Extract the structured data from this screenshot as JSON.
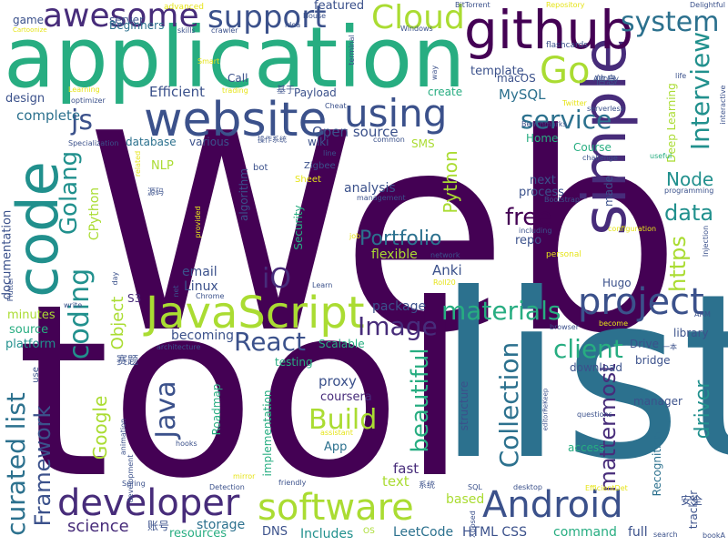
{
  "palette": {
    "p1": "#440154",
    "p2": "#472c7a",
    "p3": "#3b518b",
    "p4": "#2c718e",
    "p5": "#21908d",
    "p6": "#27ad81",
    "p7": "#5cc863",
    "p8": "#aadc32",
    "p9": "#e6e419"
  },
  "words": [
    {
      "text": "Web",
      "color": "p1"
    },
    {
      "text": "tool",
      "color": "p1"
    },
    {
      "text": "list",
      "color": "p4"
    },
    {
      "text": "application",
      "color": "p6"
    },
    {
      "text": "simple",
      "color": "p2"
    },
    {
      "text": "code",
      "color": "p5"
    },
    {
      "text": "github",
      "color": "p1"
    },
    {
      "text": "website",
      "color": "p3"
    },
    {
      "text": "using",
      "color": "p3"
    },
    {
      "text": "support",
      "color": "p3"
    },
    {
      "text": "awesome",
      "color": "p2"
    },
    {
      "text": "Cloud",
      "color": "p8"
    },
    {
      "text": "system",
      "color": "p4"
    },
    {
      "text": "Go",
      "color": "p8"
    },
    {
      "text": "service",
      "color": "p4"
    },
    {
      "text": "JavaScript",
      "color": "p8"
    },
    {
      "text": "project",
      "color": "p3"
    },
    {
      "text": "developer",
      "color": "p2"
    },
    {
      "text": "software",
      "color": "p8"
    },
    {
      "text": "Android",
      "color": "p3"
    },
    {
      "text": "curated list",
      "color": "p4"
    },
    {
      "text": "Framework",
      "color": "p3"
    },
    {
      "text": "Interview",
      "color": "p5"
    },
    {
      "text": "js",
      "color": "p3"
    },
    {
      "text": "Golang",
      "color": "p5"
    },
    {
      "text": "coding",
      "color": "p5"
    },
    {
      "text": "Java",
      "color": "p3"
    },
    {
      "text": "iO",
      "color": "p2"
    },
    {
      "text": "React",
      "color": "p3"
    },
    {
      "text": "Image",
      "color": "p2"
    },
    {
      "text": "materials",
      "color": "p6"
    },
    {
      "text": "client",
      "color": "p6"
    },
    {
      "text": "Build",
      "color": "p8"
    },
    {
      "text": "Collection",
      "color": "p4"
    },
    {
      "text": "beautiful",
      "color": "p6"
    },
    {
      "text": "mattermost",
      "color": "p2"
    },
    {
      "text": "Portfolio",
      "color": "p4"
    },
    {
      "text": "free",
      "color": "p1"
    },
    {
      "text": "data",
      "color": "p5"
    },
    {
      "text": "Node",
      "color": "p5"
    },
    {
      "text": "https",
      "color": "p8"
    },
    {
      "text": "driver",
      "color": "p5"
    },
    {
      "text": "Python",
      "color": "p8"
    },
    {
      "text": "Google",
      "color": "p8"
    },
    {
      "text": "Object",
      "color": "p8"
    },
    {
      "text": "CPython",
      "color": "p8"
    },
    {
      "text": "science",
      "color": "p2"
    },
    {
      "text": "Efficient",
      "color": "p3"
    },
    {
      "text": "complete",
      "color": "p4"
    },
    {
      "text": "template",
      "color": "p3"
    },
    {
      "text": "MySQL",
      "color": "p4"
    },
    {
      "text": "Open source",
      "color": "p3"
    },
    {
      "text": "analysis",
      "color": "p3"
    },
    {
      "text": "process",
      "color": "p3"
    },
    {
      "text": "next",
      "color": "p3"
    },
    {
      "text": "repo",
      "color": "p3"
    },
    {
      "text": "flexible",
      "color": "p8"
    },
    {
      "text": "Anki",
      "color": "p3"
    },
    {
      "text": "package",
      "color": "p3"
    },
    {
      "text": "email",
      "color": "p3"
    },
    {
      "text": "Linux",
      "color": "p3"
    },
    {
      "text": "becoming",
      "color": "p3"
    },
    {
      "text": "proxy",
      "color": "p3"
    },
    {
      "text": "coursera",
      "color": "p2"
    },
    {
      "text": "App",
      "color": "p4"
    },
    {
      "text": "fast",
      "color": "p2"
    },
    {
      "text": "text",
      "color": "p8"
    },
    {
      "text": "based",
      "color": "p8"
    },
    {
      "text": "Includes",
      "color": "p5"
    },
    {
      "text": "LeetCode",
      "color": "p4"
    },
    {
      "text": "HTML CSS",
      "color": "p3"
    },
    {
      "text": "command",
      "color": "p6"
    },
    {
      "text": "full",
      "color": "p3"
    },
    {
      "text": "storage",
      "color": "p4"
    },
    {
      "text": "resources",
      "color": "p6"
    },
    {
      "text": "DNS",
      "color": "p3"
    },
    {
      "text": "source",
      "color": "p6"
    },
    {
      "text": "platform",
      "color": "p5"
    },
    {
      "text": "minutes",
      "color": "p8"
    },
    {
      "text": "documentation",
      "color": "p3"
    },
    {
      "text": "design",
      "color": "p3"
    },
    {
      "text": "game",
      "color": "p3"
    },
    {
      "text": "server",
      "color": "p3"
    },
    {
      "text": "Beginners",
      "color": "p4"
    },
    {
      "text": "featured",
      "color": "p3"
    },
    {
      "text": "Payload",
      "color": "p3"
    },
    {
      "text": "create",
      "color": "p6"
    },
    {
      "text": "Home",
      "color": "p6"
    },
    {
      "text": "Course",
      "color": "p6"
    },
    {
      "text": "SMS",
      "color": "p8"
    },
    {
      "text": "wiki",
      "color": "p3"
    },
    {
      "text": "database",
      "color": "p4"
    },
    {
      "text": "various",
      "color": "p3"
    },
    {
      "text": "NLP",
      "color": "p8"
    },
    {
      "text": "algorithm",
      "color": "p3"
    },
    {
      "text": "Security",
      "color": "p6"
    },
    {
      "text": "Call",
      "color": "p3"
    },
    {
      "text": "Deep Learning",
      "color": "p8"
    },
    {
      "text": "Scalable",
      "color": "p6"
    },
    {
      "text": "testing",
      "color": "p6"
    },
    {
      "text": "library",
      "color": "p3"
    },
    {
      "text": "Drive",
      "color": "p3"
    },
    {
      "text": "download",
      "color": "p3"
    },
    {
      "text": "bridge",
      "color": "p3"
    },
    {
      "text": "manager",
      "color": "p3"
    },
    {
      "text": "access",
      "color": "p6"
    },
    {
      "text": "Hugo",
      "color": "p3"
    },
    {
      "text": "Recognition",
      "color": "p4"
    },
    {
      "text": "tracker",
      "color": "p3"
    },
    {
      "text": "made",
      "color": "p3"
    },
    {
      "text": "implementation",
      "color": "p6"
    },
    {
      "text": "structure",
      "color": "p3"
    },
    {
      "text": "Roadmap",
      "color": "p6"
    },
    {
      "text": "S3",
      "color": "p2"
    },
    {
      "text": "macOS",
      "color": "p3"
    },
    {
      "text": "Sheet",
      "color": "p9"
    },
    {
      "text": "Zigbee",
      "color": "p3"
    },
    {
      "text": "bot",
      "color": "p3"
    },
    {
      "text": "赛题",
      "color": "p3"
    },
    {
      "text": "账号",
      "color": "p3"
    },
    {
      "text": "安全",
      "color": "p3"
    },
    {
      "text": "信息",
      "color": "p3"
    },
    {
      "text": "基于",
      "color": "p3"
    },
    {
      "text": "源码",
      "color": "p3"
    },
    {
      "text": "操作系统",
      "color": "p3"
    },
    {
      "text": "系统",
      "color": "p3"
    },
    {
      "text": "一本",
      "color": "p3"
    },
    {
      "text": "advanced",
      "color": "p9"
    },
    {
      "text": "skills",
      "color": "p3"
    },
    {
      "text": "crawler",
      "color": "p3"
    },
    {
      "text": "idea",
      "color": "p3"
    },
    {
      "text": "Windows",
      "color": "p3"
    },
    {
      "text": "BitTorrent",
      "color": "p3"
    },
    {
      "text": "Repository",
      "color": "p9"
    },
    {
      "text": "Delightful",
      "color": "p3"
    },
    {
      "text": "terminal",
      "color": "p3"
    },
    {
      "text": "flashcards",
      "color": "p3"
    },
    {
      "text": "Smart",
      "color": "p9"
    },
    {
      "text": "Learning",
      "color": "p9"
    },
    {
      "text": "trading",
      "color": "p9"
    },
    {
      "text": "way",
      "color": "p3"
    },
    {
      "text": "Benchmarks",
      "color": "p3"
    },
    {
      "text": "Airplay",
      "color": "p3"
    },
    {
      "text": "life",
      "color": "p3"
    },
    {
      "text": "interactive",
      "color": "p3"
    },
    {
      "text": "Twitter",
      "color": "p9"
    },
    {
      "text": "serverless",
      "color": "p3"
    },
    {
      "text": "challenge",
      "color": "p3"
    },
    {
      "text": "useful",
      "color": "p6"
    },
    {
      "text": "programming",
      "color": "p3"
    },
    {
      "text": "configuration",
      "color": "p9"
    },
    {
      "text": "Injection",
      "color": "p3"
    },
    {
      "text": "personal",
      "color": "p9"
    },
    {
      "text": "network",
      "color": "p3"
    },
    {
      "text": "including",
      "color": "p3"
    },
    {
      "text": "Bootstrap",
      "color": "p3"
    },
    {
      "text": "management",
      "color": "p3"
    },
    {
      "text": "line",
      "color": "p3"
    },
    {
      "text": "common",
      "color": "p3"
    },
    {
      "text": "Cheat",
      "color": "p3"
    },
    {
      "text": "House",
      "color": "p3"
    },
    {
      "text": "Specialization",
      "color": "p3"
    },
    {
      "text": "optimizer",
      "color": "p3"
    },
    {
      "text": "related",
      "color": "p9"
    },
    {
      "text": "provided",
      "color": "p9"
    },
    {
      "text": "job",
      "color": "p9"
    },
    {
      "text": "Learn",
      "color": "p3"
    },
    {
      "text": "Roll20",
      "color": "p9"
    },
    {
      "text": "Chrome",
      "color": "p3"
    },
    {
      "text": "net",
      "color": "p3"
    },
    {
      "text": "day",
      "color": "p3"
    },
    {
      "text": "write",
      "color": "p3"
    },
    {
      "text": "Flutter",
      "color": "p3"
    },
    {
      "text": "use",
      "color": "p3"
    },
    {
      "text": "architecture",
      "color": "p3"
    },
    {
      "text": "animation",
      "color": "p3"
    },
    {
      "text": "hooks",
      "color": "p3"
    },
    {
      "text": "assistant",
      "color": "p9"
    },
    {
      "text": "Spring",
      "color": "p3"
    },
    {
      "text": "development",
      "color": "p3"
    },
    {
      "text": "Detection",
      "color": "p3"
    },
    {
      "text": "friendly",
      "color": "p3"
    },
    {
      "text": "mirror",
      "color": "p9"
    },
    {
      "text": "SQL",
      "color": "p3"
    },
    {
      "text": "desktop",
      "color": "p3"
    },
    {
      "text": "EfficientDet",
      "color": "p9"
    },
    {
      "text": "Xposed",
      "color": "p3"
    },
    {
      "text": "OS",
      "color": "p8"
    },
    {
      "text": "questions",
      "color": "p3"
    },
    {
      "text": "browser",
      "color": "p3"
    },
    {
      "text": "become",
      "color": "p9"
    },
    {
      "text": "ARM",
      "color": "p3"
    },
    {
      "text": "bookA",
      "color": "p3"
    },
    {
      "text": "search",
      "color": "p3"
    },
    {
      "text": "editorReKeep",
      "color": "p3"
    },
    {
      "text": "Cartoonize",
      "color": "p9"
    }
  ]
}
